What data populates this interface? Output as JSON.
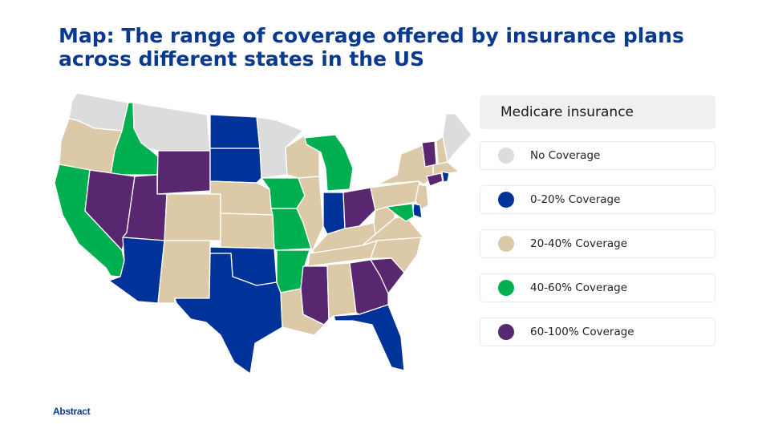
{
  "title": "Map: The range of coverage offered by insurance plans across different states in the US",
  "legend": {
    "header": "Medicare insurance",
    "items": [
      {
        "key": "none",
        "label": "No Coverage",
        "color": "#dcdcdc"
      },
      {
        "key": "c0_20",
        "label": "0-20% Coverage",
        "color": "#003399"
      },
      {
        "key": "c20_40",
        "label": "20-40% Coverage",
        "color": "#dcc9a8"
      },
      {
        "key": "c40_60",
        "label": "40-60% Coverage",
        "color": "#00b050"
      },
      {
        "key": "c60_100",
        "label": "60-100% Coverage",
        "color": "#59276f"
      }
    ]
  },
  "states": {
    "WA": "none",
    "OR": "c20_40",
    "CA": "c40_60",
    "ID": "c40_60",
    "NV": "c60_100",
    "MT": "none",
    "WY": "c60_100",
    "UT": "c60_100",
    "AZ": "c0_20",
    "CO": "c20_40",
    "NM": "c20_40",
    "ND": "c0_20",
    "SD": "c0_20",
    "NE": "c20_40",
    "KS": "c20_40",
    "OK": "c0_20",
    "TX": "c0_20",
    "MN": "none",
    "IA": "c40_60",
    "MO": "c40_60",
    "AR": "c40_60",
    "LA": "c20_40",
    "WI": "c20_40",
    "IL": "c20_40",
    "MI": "c40_60",
    "IN": "c0_20",
    "OH": "c60_100",
    "KY": "c20_40",
    "TN": "c20_40",
    "MS": "c60_100",
    "AL": "c20_40",
    "GA": "c60_100",
    "FL": "c0_20",
    "SC": "c60_100",
    "NC": "c20_40",
    "VA": "c20_40",
    "WV": "c20_40",
    "PA": "c20_40",
    "NY": "c20_40",
    "VT": "c60_100",
    "NH": "c20_40",
    "ME": "none",
    "MA": "c20_40",
    "CT": "c60_100",
    "RI": "c0_20",
    "NJ": "c20_40",
    "DE": "c0_20",
    "MD": "c40_60"
  },
  "brand": {
    "logo_text": "Abstract"
  }
}
